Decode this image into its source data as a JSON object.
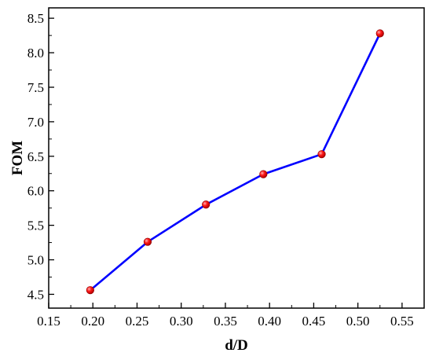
{
  "chart_data": {
    "type": "line",
    "title": "",
    "xlabel": "d/D",
    "ylabel": "FOM",
    "xlim": [
      0.15,
      0.575
    ],
    "ylim": [
      4.3,
      8.65
    ],
    "xticks": [
      "0.15",
      "0.20",
      "0.25",
      "0.30",
      "0.35",
      "0.40",
      "0.45",
      "0.50",
      "0.55"
    ],
    "yticks": [
      "4.5",
      "5.0",
      "5.5",
      "6.0",
      "6.5",
      "7.0",
      "7.5",
      "8.0",
      "8.5"
    ],
    "grid": false,
    "legend": "none",
    "series": [
      {
        "line_color": "#0000ff",
        "marker_color": "#ff0000",
        "marker": "sphere",
        "x": [
          0.197,
          0.262,
          0.328,
          0.393,
          0.459,
          0.525
        ],
        "y": [
          4.56,
          5.26,
          5.8,
          6.24,
          6.53,
          8.28
        ]
      }
    ]
  }
}
